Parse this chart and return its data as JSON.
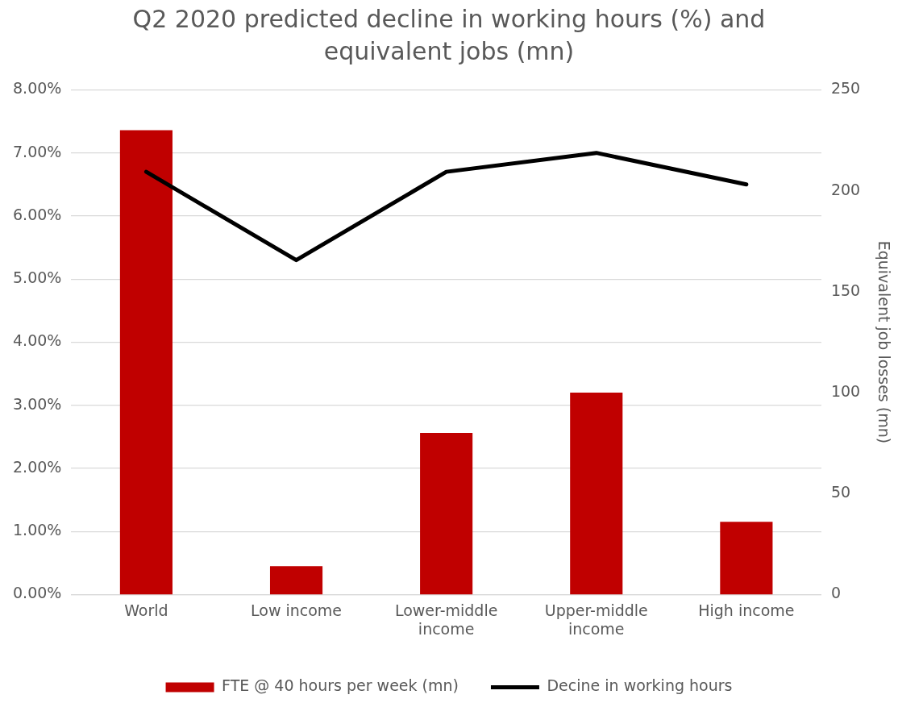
{
  "chart_data": {
    "type": "bar",
    "title": "Q2 2020 predicted decline in working hours (%) and equivalent jobs (mn)",
    "y2label": "Equivalent job losses (mn)",
    "categories": [
      "World",
      "Low income",
      "Lower-middle income",
      "Upper-middle income",
      "High income"
    ],
    "series": [
      {
        "name": "FTE @ 40 hours per week (mn)",
        "axis": "y2",
        "color": "#c00000",
        "values": [
          230,
          14,
          80,
          100,
          36
        ]
      },
      {
        "name": "Decine in working hours",
        "type": "line",
        "color": "#000000",
        "marker": "none",
        "values": [
          6.7,
          5.3,
          6.7,
          7.0,
          6.5
        ]
      }
    ],
    "ylim": [
      0,
      8
    ],
    "yticks": [
      {
        "value": 0,
        "label": "0.00%"
      },
      {
        "value": 1,
        "label": "1.00%"
      },
      {
        "value": 2,
        "label": "2.00%"
      },
      {
        "value": 3,
        "label": "3.00%"
      },
      {
        "value": 4,
        "label": "4.00%"
      },
      {
        "value": 5,
        "label": "5.00%"
      },
      {
        "value": 6,
        "label": "6.00%"
      },
      {
        "value": 7,
        "label": "7.00%"
      },
      {
        "value": 8,
        "label": "8.00%"
      }
    ],
    "y2lim": [
      0,
      250
    ],
    "y2ticks": [
      0,
      50,
      100,
      150,
      200,
      250
    ],
    "grid": "y",
    "legend": "bottom"
  }
}
